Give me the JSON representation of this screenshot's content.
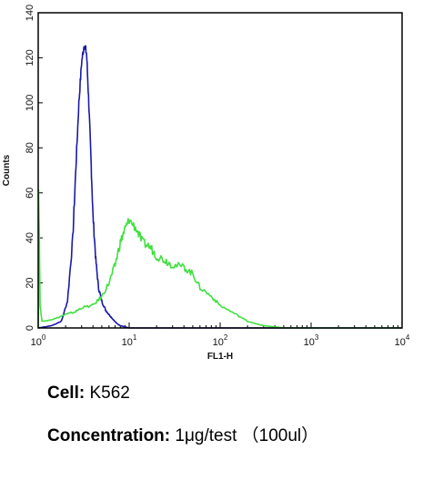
{
  "chart_data": {
    "type": "line",
    "xlabel": "FL1-H",
    "ylabel": "Counts",
    "xscale": "log",
    "xlim": [
      1,
      10000
    ],
    "ylim": [
      0,
      140
    ],
    "x_ticks": [
      1,
      10,
      100,
      1000,
      10000
    ],
    "x_tick_labels": [
      {
        "base": "10",
        "exp": "0"
      },
      {
        "base": "10",
        "exp": "1"
      },
      {
        "base": "10",
        "exp": "2"
      },
      {
        "base": "10",
        "exp": "3"
      },
      {
        "base": "10",
        "exp": "4"
      }
    ],
    "y_ticks": [
      0,
      20,
      40,
      60,
      80,
      100,
      120,
      140
    ],
    "y_tick_labels": [
      "0",
      "20",
      "40",
      "60",
      "80",
      "100",
      "120",
      "140"
    ],
    "grid": false,
    "series": [
      {
        "color": "#1a1aa8",
        "x": [
          1,
          1.4,
          1.8,
          2.1,
          2.4,
          2.6,
          2.8,
          3.0,
          3.2,
          3.4,
          3.6,
          3.8,
          4.0,
          4.3,
          4.6,
          5.0,
          5.5,
          6.0,
          6.6,
          7.3,
          8.0,
          9.0,
          10,
          12,
          100,
          1000,
          10000
        ],
        "y": [
          0,
          1,
          3,
          12,
          40,
          72,
          100,
          118,
          126,
          122,
          100,
          75,
          50,
          30,
          18,
          12,
          8,
          6,
          4,
          2,
          1,
          0.5,
          0,
          0,
          0,
          0,
          0
        ]
      },
      {
        "color": "#3fe03f",
        "x": [
          1,
          1.01,
          1.05,
          1.1,
          1.5,
          2,
          2.5,
          3,
          4,
          5,
          6,
          7,
          8,
          9,
          10,
          12,
          14,
          17,
          20,
          25,
          30,
          40,
          50,
          60,
          80,
          100,
          150,
          200,
          300,
          400,
          500,
          10000
        ],
        "y": [
          0,
          63,
          10,
          3,
          4,
          6,
          7,
          9,
          10,
          14,
          20,
          28,
          38,
          44,
          48,
          44,
          38,
          36,
          32,
          30,
          28,
          27,
          24,
          18,
          14,
          10,
          6,
          3,
          1,
          0.5,
          0,
          0
        ]
      }
    ]
  },
  "info": {
    "cell_label": "Cell:",
    "cell_value": "K562",
    "concentration_label": "Concentration:",
    "concentration_value": "1μg/test （100ul）"
  }
}
